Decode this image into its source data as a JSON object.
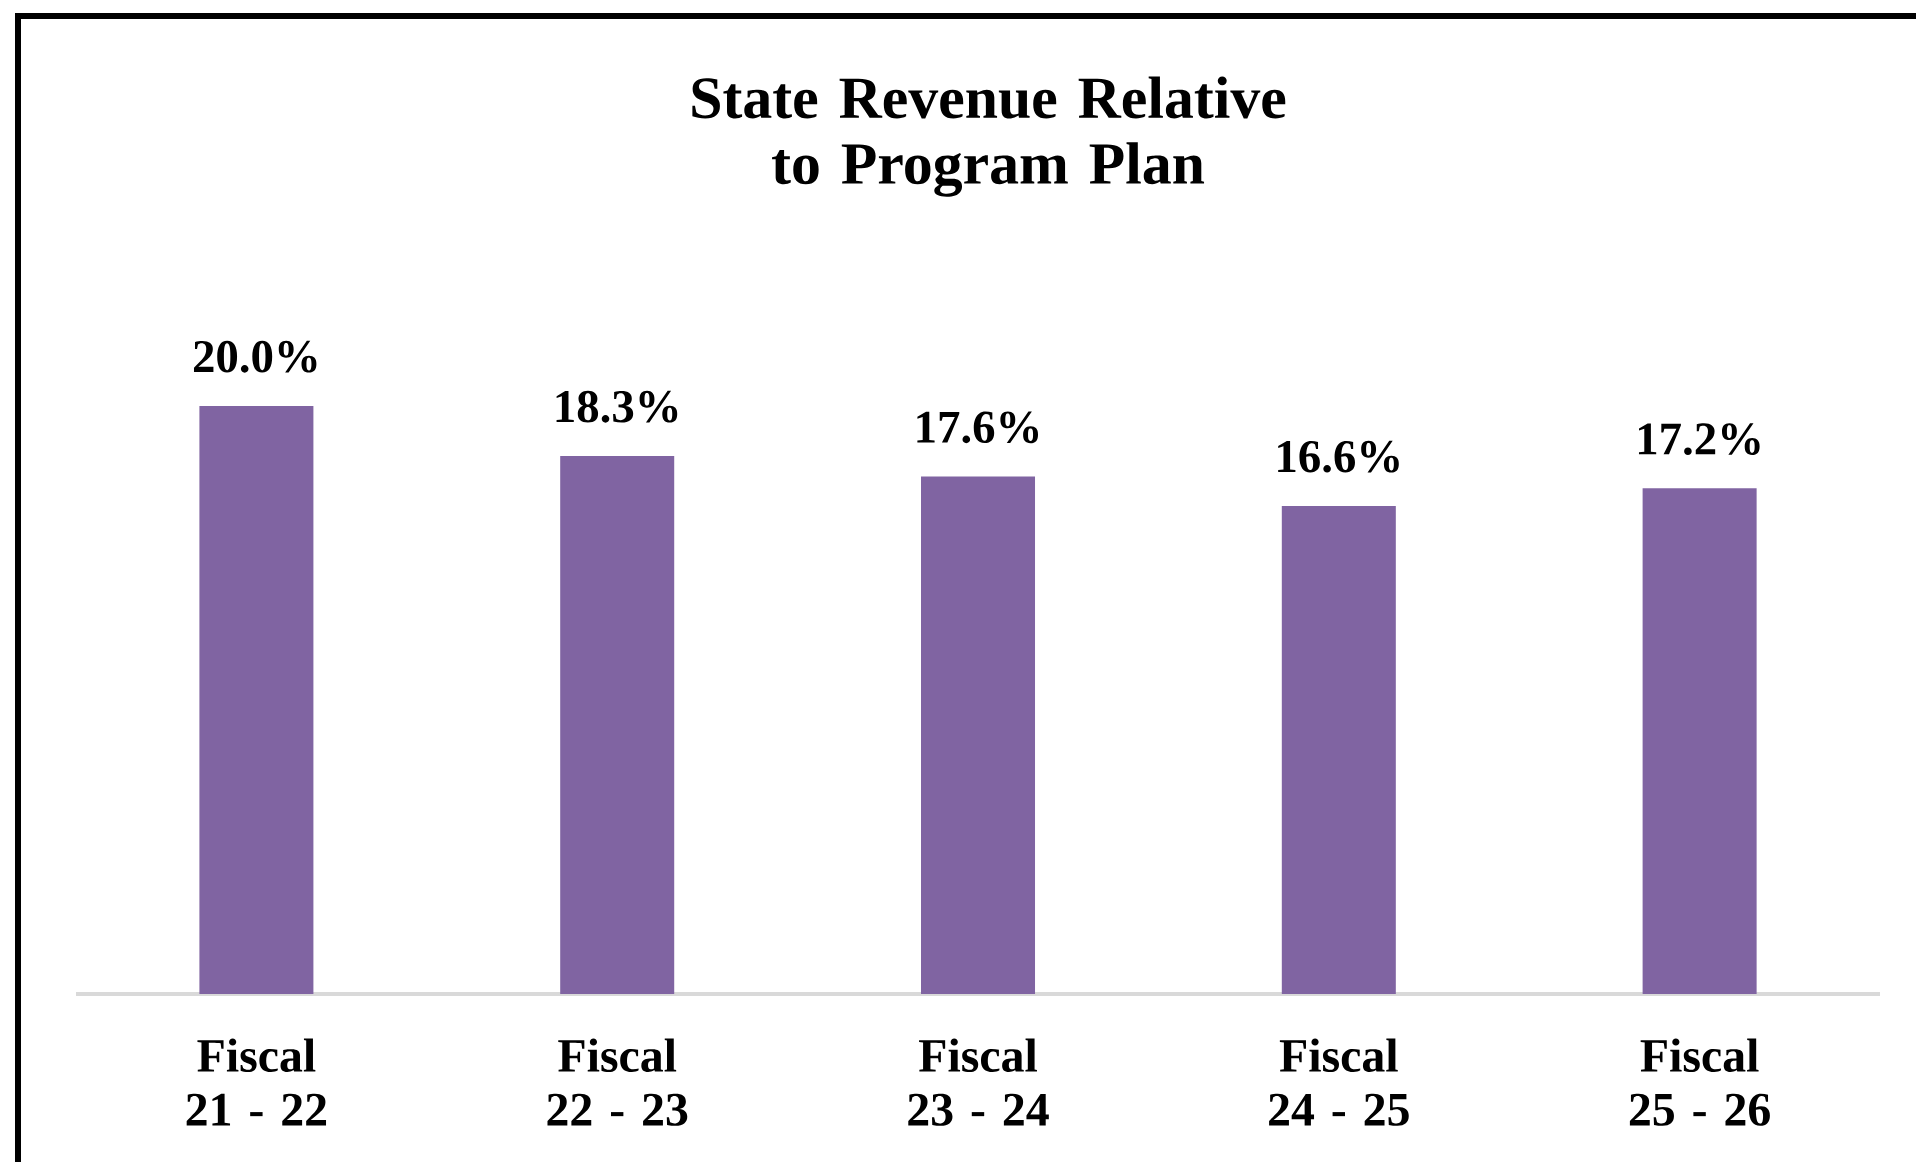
{
  "chart_data": {
    "type": "bar",
    "title": "State Revenue Relative to Program Plan",
    "categories": [
      "Fiscal 21 - 22",
      "Fiscal 22 - 23",
      "Fiscal 23 - 24",
      "Fiscal 24 - 25",
      "Fiscal 25 - 26"
    ],
    "values": [
      20.0,
      18.3,
      17.6,
      16.6,
      17.2
    ],
    "value_labels": [
      "20.0%",
      "18.3%",
      "17.6%",
      "16.6%",
      "17.2%"
    ],
    "color": "#8064a2",
    "tick_labels": "x"
  }
}
